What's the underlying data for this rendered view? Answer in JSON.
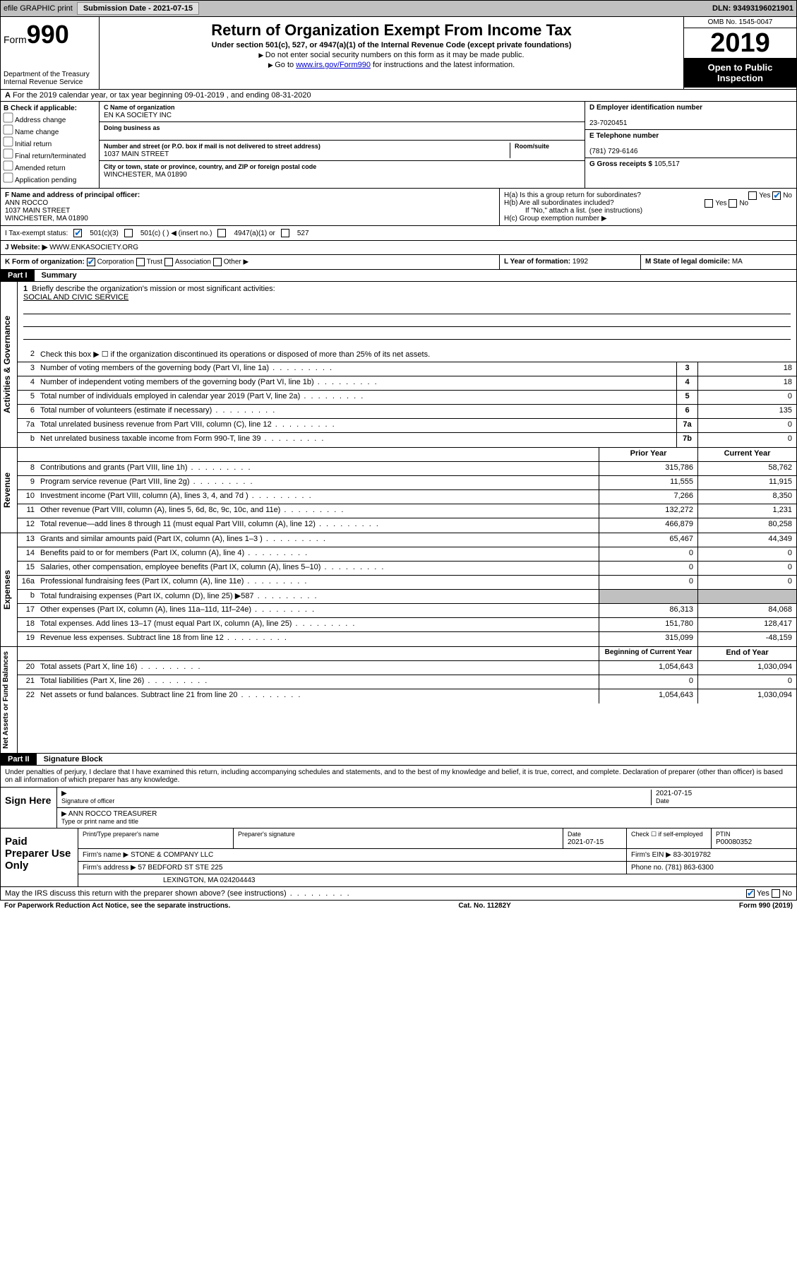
{
  "topbar": {
    "efile": "efile GRAPHIC print",
    "submission_label": "Submission Date - ",
    "submission_date": "2021-07-15",
    "dln_label": "DLN: ",
    "dln": "93493196021901"
  },
  "header": {
    "form_word": "Form",
    "form_num": "990",
    "dept": "Department of the Treasury\nInternal Revenue Service",
    "title": "Return of Organization Exempt From Income Tax",
    "subtitle": "Under section 501(c), 527, or 4947(a)(1) of the Internal Revenue Code (except private foundations)",
    "note1": "Do not enter social security numbers on this form as it may be made public.",
    "note2_pre": "Go to ",
    "note2_link": "www.irs.gov/Form990",
    "note2_post": " for instructions and the latest information.",
    "omb": "OMB No. 1545-0047",
    "year": "2019",
    "inspect": "Open to Public Inspection"
  },
  "lineA": "For the 2019 calendar year, or tax year beginning 09-01-2019   , and ending 08-31-2020",
  "checkB": {
    "label": "B Check if applicable:",
    "items": [
      "Address change",
      "Name change",
      "Initial return",
      "Final return/terminated",
      "Amended return",
      "Application pending"
    ]
  },
  "entity": {
    "c_label": "C Name of organization",
    "c_name": "EN KA SOCIETY INC",
    "dba_label": "Doing business as",
    "dba": "",
    "addr_label": "Number and street (or P.O. box if mail is not delivered to street address)",
    "room_label": "Room/suite",
    "addr": "1037 MAIN STREET",
    "city_label": "City or town, state or province, country, and ZIP or foreign postal code",
    "city": "WINCHESTER, MA  01890",
    "d_label": "D Employer identification number",
    "d_ein": "23-7020451",
    "e_label": "E Telephone number",
    "e_phone": "(781) 729-6146",
    "g_label": "G Gross receipts $ ",
    "g_val": "105,517"
  },
  "officer": {
    "f_label": "F  Name and address of principal officer:",
    "name": "ANN ROCCO",
    "addr1": "1037 MAIN STREET",
    "addr2": "WINCHESTER, MA  01890",
    "ha": "H(a)  Is this a group return for subordinates?",
    "ha_ans": "No",
    "hb": "H(b)  Are all subordinates included?",
    "hb_note": "If \"No,\" attach a list. (see instructions)",
    "hc": "H(c)  Group exemption number ▶"
  },
  "status": {
    "label": "I   Tax-exempt status:",
    "opt1": "501(c)(3)",
    "opt2": "501(c) (  ) ◀ (insert no.)",
    "opt3": "4947(a)(1) or",
    "opt4": "527"
  },
  "website": {
    "label": "J   Website: ▶",
    "val": "WWW.ENKASOCIETY.ORG"
  },
  "kline": {
    "k": "K Form of organization:",
    "k_opts": [
      "Corporation",
      "Trust",
      "Association",
      "Other ▶"
    ],
    "l": "L Year of formation: ",
    "l_val": "1992",
    "m": "M State of legal domicile: ",
    "m_val": "MA"
  },
  "part1": {
    "tag": "Part I",
    "title": "Summary"
  },
  "summary": {
    "q1": "Briefly describe the organization's mission or most significant activities:",
    "mission": "SOCIAL AND CIVIC SERVICE",
    "q2": "Check this box ▶ ☐  if the organization discontinued its operations or disposed of more than 25% of its net assets.",
    "lines_gov": [
      {
        "n": "3",
        "d": "Number of voting members of the governing body (Part VI, line 1a)",
        "box": "3",
        "v": "18"
      },
      {
        "n": "4",
        "d": "Number of independent voting members of the governing body (Part VI, line 1b)",
        "box": "4",
        "v": "18"
      },
      {
        "n": "5",
        "d": "Total number of individuals employed in calendar year 2019 (Part V, line 2a)",
        "box": "5",
        "v": "0"
      },
      {
        "n": "6",
        "d": "Total number of volunteers (estimate if necessary)",
        "box": "6",
        "v": "135"
      },
      {
        "n": "7a",
        "d": "Total unrelated business revenue from Part VIII, column (C), line 12",
        "box": "7a",
        "v": "0"
      },
      {
        "n": "b",
        "d": "Net unrelated business taxable income from Form 990-T, line 39",
        "box": "7b",
        "v": "0"
      }
    ],
    "hdr_prior": "Prior Year",
    "hdr_curr": "Current Year",
    "revenue": [
      {
        "n": "8",
        "d": "Contributions and grants (Part VIII, line 1h)",
        "p": "315,786",
        "c": "58,762"
      },
      {
        "n": "9",
        "d": "Program service revenue (Part VIII, line 2g)",
        "p": "11,555",
        "c": "11,915"
      },
      {
        "n": "10",
        "d": "Investment income (Part VIII, column (A), lines 3, 4, and 7d )",
        "p": "7,266",
        "c": "8,350"
      },
      {
        "n": "11",
        "d": "Other revenue (Part VIII, column (A), lines 5, 6d, 8c, 9c, 10c, and 11e)",
        "p": "132,272",
        "c": "1,231"
      },
      {
        "n": "12",
        "d": "Total revenue—add lines 8 through 11 (must equal Part VIII, column (A), line 12)",
        "p": "466,879",
        "c": "80,258"
      }
    ],
    "expenses": [
      {
        "n": "13",
        "d": "Grants and similar amounts paid (Part IX, column (A), lines 1–3 )",
        "p": "65,467",
        "c": "44,349"
      },
      {
        "n": "14",
        "d": "Benefits paid to or for members (Part IX, column (A), line 4)",
        "p": "0",
        "c": "0"
      },
      {
        "n": "15",
        "d": "Salaries, other compensation, employee benefits (Part IX, column (A), lines 5–10)",
        "p": "0",
        "c": "0"
      },
      {
        "n": "16a",
        "d": "Professional fundraising fees (Part IX, column (A), line 11e)",
        "p": "0",
        "c": "0"
      },
      {
        "n": "b",
        "d": "Total fundraising expenses (Part IX, column (D), line 25) ▶587",
        "p": "",
        "c": "",
        "shaded": true
      },
      {
        "n": "17",
        "d": "Other expenses (Part IX, column (A), lines 11a–11d, 11f–24e)",
        "p": "86,313",
        "c": "84,068"
      },
      {
        "n": "18",
        "d": "Total expenses. Add lines 13–17 (must equal Part IX, column (A), line 25)",
        "p": "151,780",
        "c": "128,417"
      },
      {
        "n": "19",
        "d": "Revenue less expenses. Subtract line 18 from line 12",
        "p": "315,099",
        "c": "-48,159"
      }
    ],
    "hdr_beg": "Beginning of Current Year",
    "hdr_end": "End of Year",
    "netassets": [
      {
        "n": "20",
        "d": "Total assets (Part X, line 16)",
        "p": "1,054,643",
        "c": "1,030,094"
      },
      {
        "n": "21",
        "d": "Total liabilities (Part X, line 26)",
        "p": "0",
        "c": "0"
      },
      {
        "n": "22",
        "d": "Net assets or fund balances. Subtract line 21 from line 20",
        "p": "1,054,643",
        "c": "1,030,094"
      }
    ]
  },
  "vlabels": {
    "gov": "Activities & Governance",
    "rev": "Revenue",
    "exp": "Expenses",
    "net": "Net Assets or Fund Balances"
  },
  "part2": {
    "tag": "Part II",
    "title": "Signature Block"
  },
  "sig": {
    "penalty": "Under penalties of perjury, I declare that I have examined this return, including accompanying schedules and statements, and to the best of my knowledge and belief, it is true, correct, and complete. Declaration of preparer (other than officer) is based on all information of which preparer has any knowledge.",
    "sign_here": "Sign Here",
    "sig_officer": "Signature of officer",
    "sig_date": "2021-07-15",
    "date_lbl": "Date",
    "name_title": "ANN ROCCO  TREASURER",
    "type_lbl": "Type or print name and title"
  },
  "prep": {
    "label": "Paid Preparer Use Only",
    "print_name_lbl": "Print/Type preparer's name",
    "prep_sig_lbl": "Preparer's signature",
    "date_lbl": "Date",
    "date": "2021-07-15",
    "check_lbl": "Check ☐ if self-employed",
    "ptin_lbl": "PTIN",
    "ptin": "P00080352",
    "firm_name_lbl": "Firm's name    ▶",
    "firm_name": "STONE & COMPANY LLC",
    "firm_ein_lbl": "Firm's EIN ▶",
    "firm_ein": "83-3019782",
    "firm_addr_lbl": "Firm's address ▶",
    "firm_addr1": "57 BEDFORD ST STE 225",
    "firm_addr2": "LEXINGTON, MA  024204443",
    "phone_lbl": "Phone no. ",
    "phone": "(781) 863-6300"
  },
  "discuss": {
    "q": "May the IRS discuss this return with the preparer shown above? (see instructions)",
    "yes": "Yes",
    "no": "No"
  },
  "footer": {
    "left": "For Paperwork Reduction Act Notice, see the separate instructions.",
    "mid": "Cat. No. 11282Y",
    "right": "Form 990 (2019)"
  }
}
